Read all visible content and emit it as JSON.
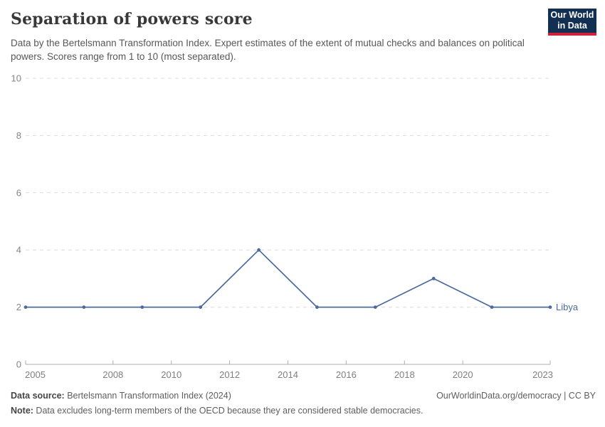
{
  "header": {
    "title": "Separation of powers score",
    "subtitle": "Data by the Bertelsmann Transformation Index. Expert estimates of the extent of mutual checks and balances on political powers. Scores range from 1 to 10 (most separated).",
    "logo": {
      "line1": "Our World",
      "line2": "in Data"
    }
  },
  "chart_data": {
    "type": "line",
    "series": [
      {
        "name": "Libya",
        "color": "#4c6a9c",
        "x": [
          2005,
          2007,
          2009,
          2011,
          2013,
          2015,
          2017,
          2019,
          2021,
          2023
        ],
        "values": [
          2,
          2,
          2,
          2,
          4,
          2,
          2,
          3,
          2,
          2
        ]
      }
    ],
    "x_ticks": [
      2005,
      2008,
      2010,
      2012,
      2014,
      2016,
      2018,
      2020,
      2023
    ],
    "y_ticks": [
      0,
      2,
      4,
      6,
      8,
      10
    ],
    "xlim": [
      2005,
      2023
    ],
    "ylim": [
      0,
      10
    ],
    "grid": "horizontal-dashed",
    "legend_position": "end-of-line",
    "title": "Separation of powers score",
    "xlabel": "",
    "ylabel": ""
  },
  "colors": {
    "line": "#4c6a9c",
    "grid": "#dcdcdc",
    "axis": "#adadad",
    "tick_label": "#858585",
    "logo_bg": "#132f52",
    "logo_red": "#d02139"
  },
  "footer": {
    "source_label": "Data source:",
    "source_text": " Bertelsmann Transformation Index (2024)",
    "note_label": "Note:",
    "note_text": " Data excludes long-term members of the OECD because they are considered stable democracies.",
    "rights": "OurWorldinData.org/democracy | CC BY"
  }
}
